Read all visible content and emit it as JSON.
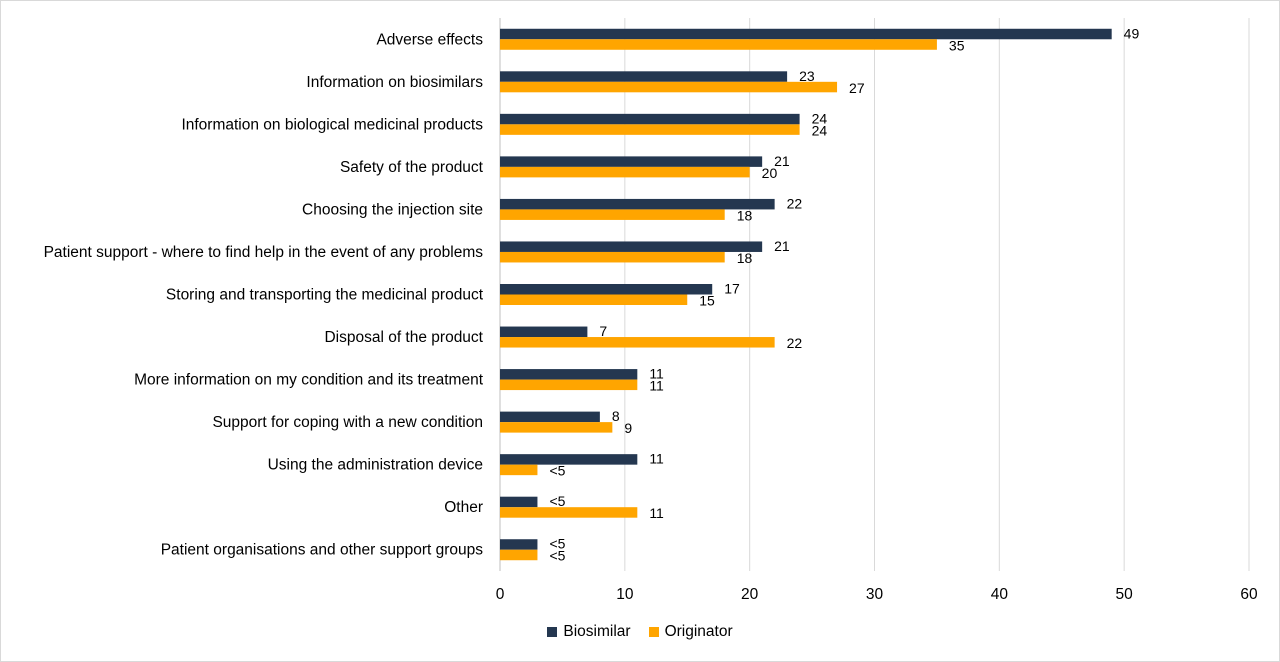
{
  "chart_data": {
    "type": "bar",
    "orientation": "horizontal",
    "categories": [
      "Adverse effects",
      "Information on biosimilars",
      "Information on biological medicinal products",
      "Safety of the product",
      "Choosing the injection site",
      "Patient support - where to find help in the event of any problems",
      "Storing and transporting the medicinal product",
      "Disposal of the product",
      "More information on my condition and its treatment",
      "Support for coping with a new condition",
      "Using the administration device",
      "Other",
      "Patient organisations and other support groups"
    ],
    "series": [
      {
        "name": "Biosimilar",
        "color": "#243750",
        "values": [
          49,
          23,
          24,
          21,
          22,
          21,
          17,
          7,
          11,
          8,
          11,
          3,
          3
        ],
        "labels": [
          "49",
          "23",
          "24",
          "21",
          "22",
          "21",
          "17",
          "7",
          "11",
          "8",
          "11",
          "<5",
          "<5"
        ]
      },
      {
        "name": "Originator",
        "color": "#FFA500",
        "values": [
          35,
          27,
          24,
          20,
          18,
          18,
          15,
          22,
          11,
          9,
          3,
          11,
          3
        ],
        "labels": [
          "35",
          "27",
          "24",
          "20",
          "18",
          "18",
          "15",
          "22",
          "11",
          "9",
          "<5",
          "11",
          "<5"
        ]
      }
    ],
    "xlim": [
      0,
      60
    ],
    "xticks": [
      0,
      10,
      20,
      30,
      40,
      50,
      60
    ],
    "grid": true,
    "legend_position": "bottom"
  }
}
